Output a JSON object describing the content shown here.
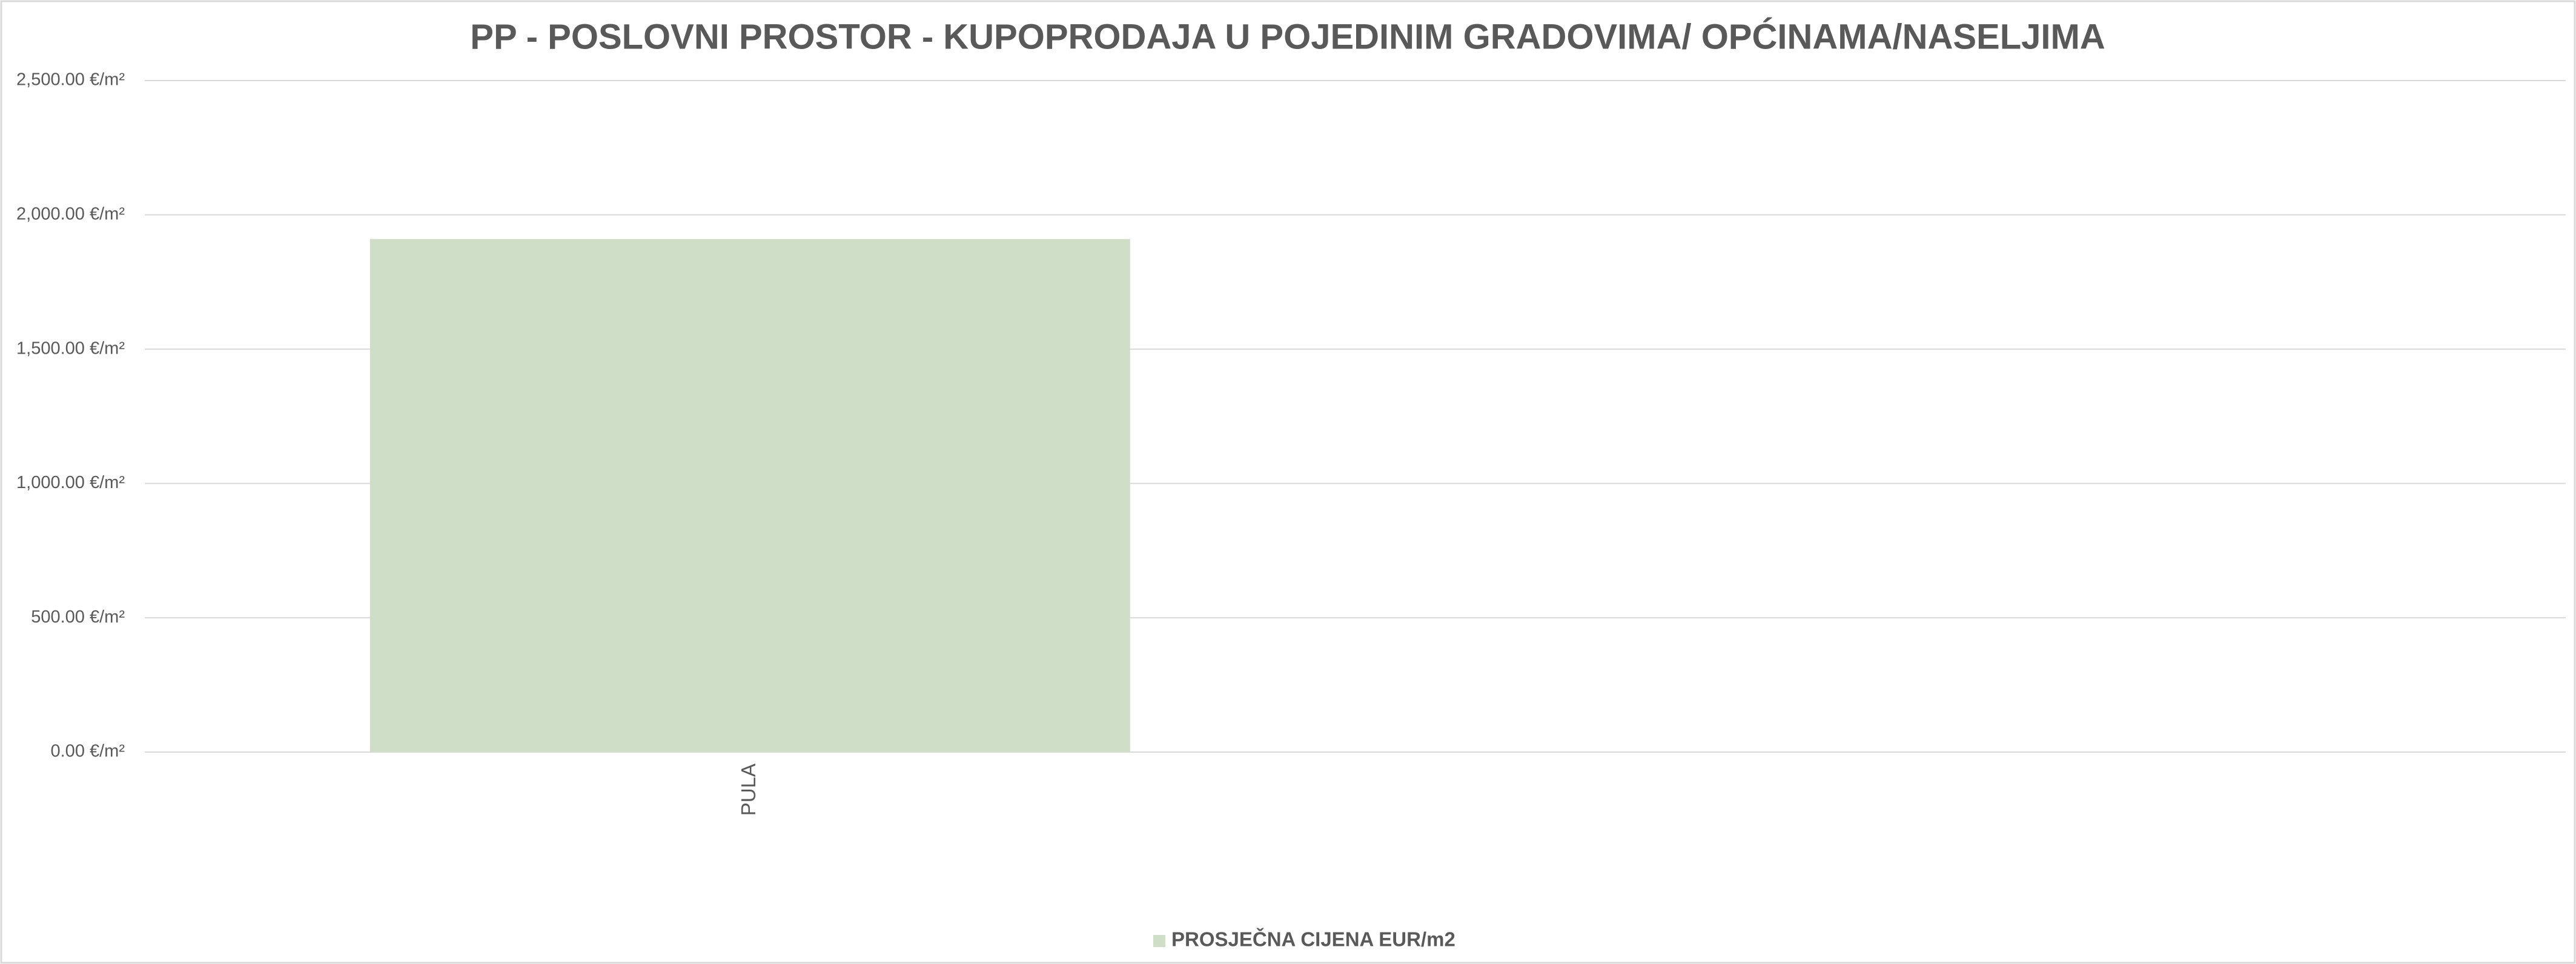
{
  "chart_data": {
    "type": "bar",
    "title": "PP - POSLOVNI PROSTOR - KUPOPRODAJA U POJEDINIM GRADOVIMA/ OPĆINAMA/NASELJIMA",
    "categories": [
      "PULA",
      null
    ],
    "series": [
      {
        "name": "PROSJEČNA CIJENA EUR/m2",
        "color": "#cfdfc7",
        "values": [
          1910,
          null
        ]
      }
    ],
    "ylim": [
      0,
      2500
    ],
    "yticks": [
      {
        "value": 0,
        "label": "0.00 €/m²"
      },
      {
        "value": 500,
        "label": "500.00 €/m²"
      },
      {
        "value": 1000,
        "label": "1,000.00 €/m²"
      },
      {
        "value": 1500,
        "label": "1,500.00 €/m²"
      },
      {
        "value": 2000,
        "label": "2,000.00 €/m²"
      },
      {
        "value": 2500,
        "label": "2,500.00 €/m²"
      }
    ],
    "grid": true,
    "legend": "bottom"
  }
}
